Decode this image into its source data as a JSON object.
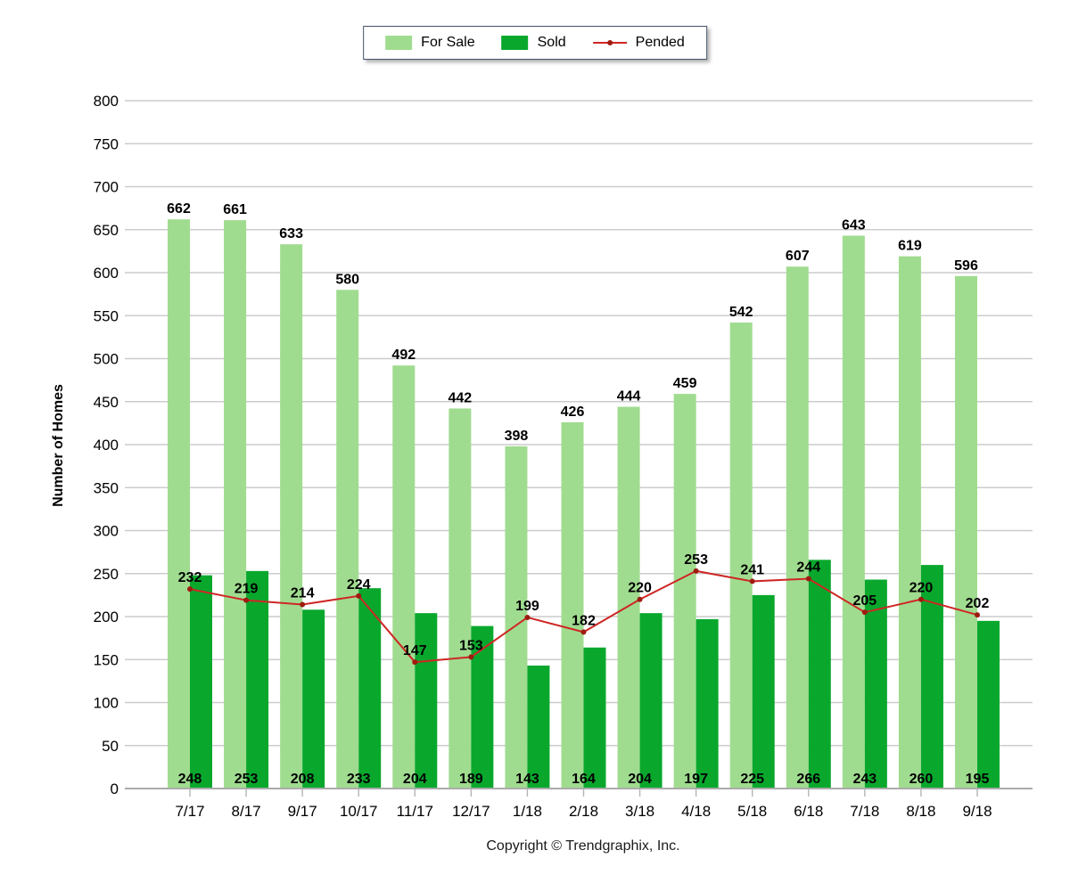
{
  "legend": {
    "items": [
      {
        "label": "For Sale",
        "color": "#a0dc8f",
        "type": "swatch"
      },
      {
        "label": "Sold",
        "color": "#09a82d",
        "type": "swatch"
      },
      {
        "label": "Pended",
        "color": "#ce2725",
        "marker_color": "#9e1b10",
        "type": "line"
      }
    ]
  },
  "footer": "Copyright © Trendgraphix, Inc.",
  "chart_data": {
    "type": "bar",
    "title": "",
    "ylabel": "Number of Homes",
    "xlabel": "",
    "ylim": [
      0,
      800
    ],
    "ytick_step": 50,
    "grid": true,
    "legend_position": "top-center",
    "categories": [
      "7/17",
      "8/17",
      "9/17",
      "10/17",
      "11/17",
      "12/17",
      "1/18",
      "2/18",
      "3/18",
      "4/18",
      "5/18",
      "6/18",
      "7/18",
      "8/18",
      "9/18"
    ],
    "series": [
      {
        "name": "For Sale",
        "type": "bar",
        "color": "#a0dc8f",
        "values": [
          662,
          661,
          633,
          580,
          492,
          442,
          398,
          426,
          444,
          459,
          542,
          607,
          643,
          619,
          596
        ]
      },
      {
        "name": "Sold",
        "type": "bar",
        "color": "#09a82d",
        "values": [
          248,
          253,
          208,
          233,
          204,
          189,
          143,
          164,
          204,
          197,
          225,
          266,
          243,
          260,
          195
        ]
      },
      {
        "name": "Pended",
        "type": "line",
        "color": "#ce2725",
        "marker_color": "#9e1b10",
        "values": [
          232,
          219,
          214,
          224,
          147,
          153,
          199,
          182,
          220,
          253,
          241,
          244,
          205,
          220,
          202
        ]
      }
    ],
    "colors": {
      "gridline": "#cccccc",
      "axis_line": "#ababab",
      "tick": "#b5b5b5",
      "label_text": "#000000"
    }
  }
}
